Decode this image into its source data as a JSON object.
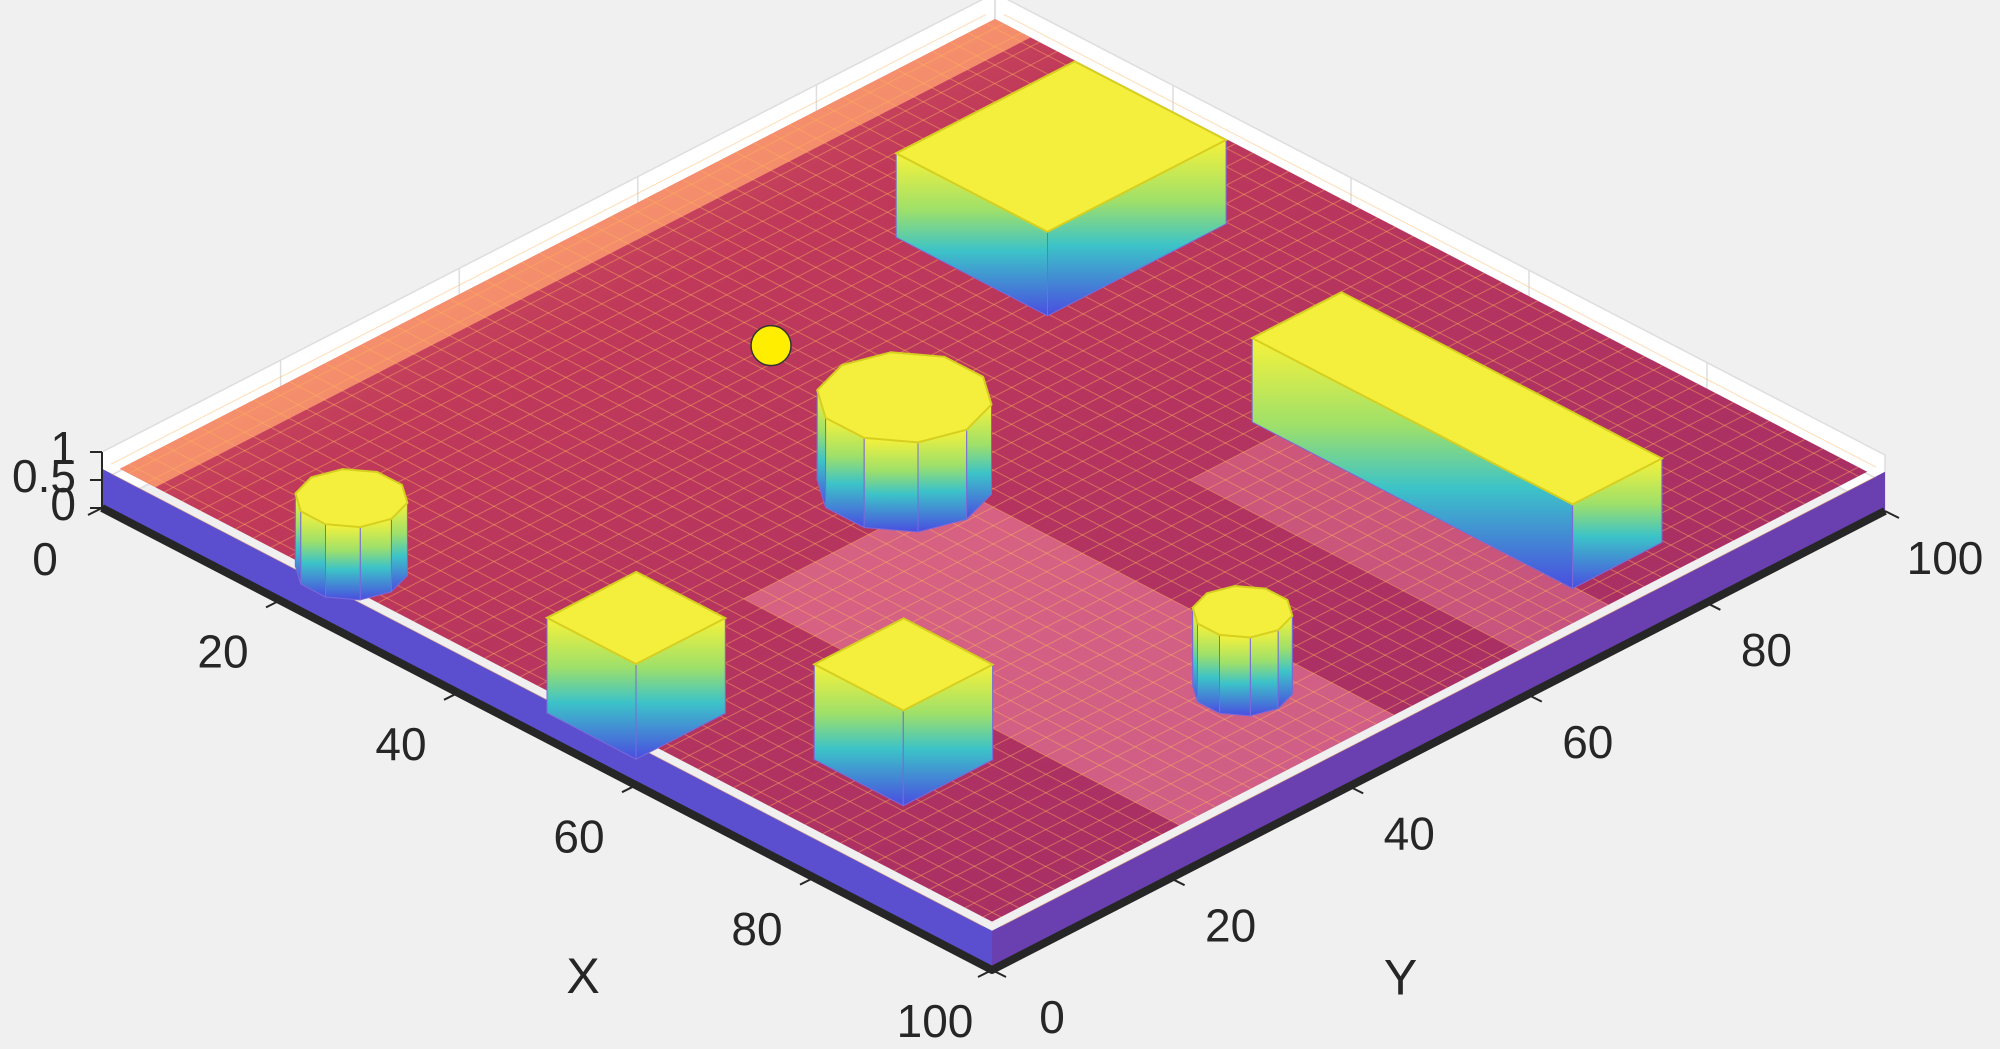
{
  "chart_data": {
    "type": "surface",
    "xlabel": "X",
    "ylabel": "Y",
    "xlim": [
      0,
      100
    ],
    "ylim": [
      0,
      100
    ],
    "zlim": [
      0,
      1
    ],
    "xticks": [
      0,
      20,
      40,
      60,
      80,
      100
    ],
    "yticks": [
      0,
      20,
      40,
      60,
      80,
      100
    ],
    "zticks": [
      0,
      0.5,
      1
    ],
    "grid": true
  }
}
